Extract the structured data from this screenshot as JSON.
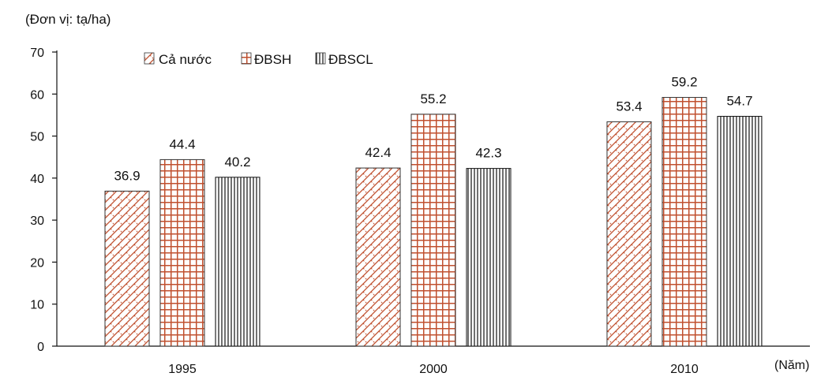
{
  "chart_data": {
    "type": "bar",
    "unit_label": "(Đơn vị: tạ/ha)",
    "xlabel": "(Năm)",
    "ylabel": "",
    "categories": [
      "1995",
      "2000",
      "2010"
    ],
    "ylim": [
      0,
      70
    ],
    "yticks": [
      "0",
      "10",
      "20",
      "30",
      "40",
      "50",
      "60",
      "70"
    ],
    "grid": false,
    "legend_position": "top-left",
    "series": [
      {
        "name": "Cả nước",
        "values": [
          36.9,
          42.4,
          53.4
        ],
        "labels": [
          "36.9",
          "42.4",
          "53.4"
        ],
        "pattern": "diagonal-cross",
        "color": "#c0502f"
      },
      {
        "name": "ĐBSH",
        "values": [
          44.4,
          55.2,
          59.2
        ],
        "labels": [
          "44.4",
          "55.2",
          "59.2"
        ],
        "pattern": "grid",
        "color": "#c0502f"
      },
      {
        "name": "ĐBSCL",
        "values": [
          40.2,
          42.3,
          54.7
        ],
        "labels": [
          "40.2",
          "42.3",
          "54.7"
        ],
        "pattern": "vertical-lines",
        "color": "#111111"
      }
    ]
  }
}
